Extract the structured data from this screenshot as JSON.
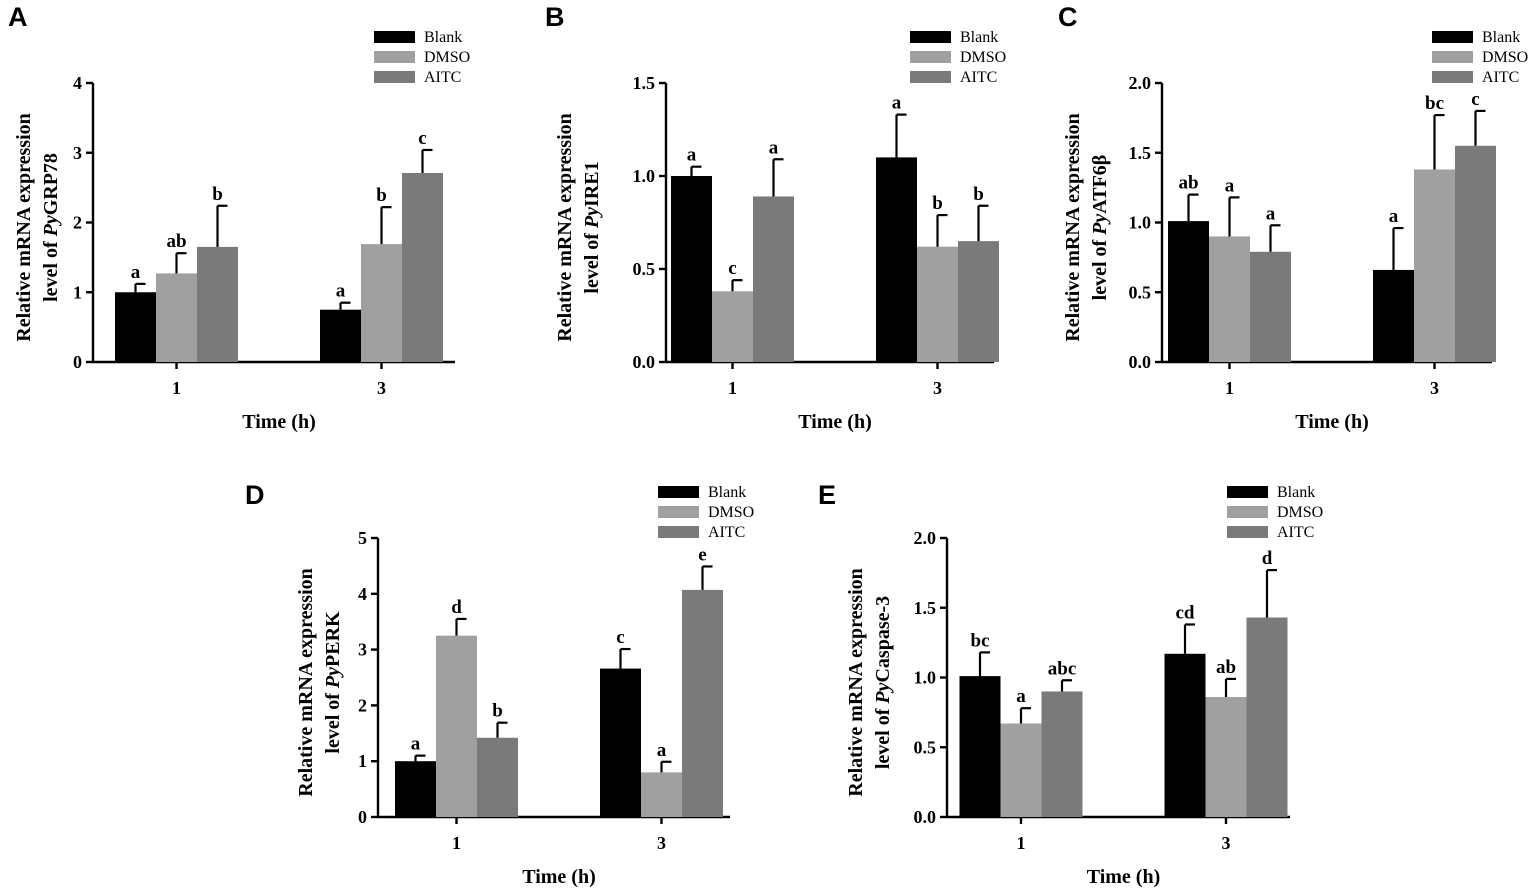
{
  "colors": {
    "Blank": "#000000",
    "DMSO": "#a0a0a0",
    "AITC": "#7a7a7a"
  },
  "chart_data": [
    {
      "type": "bar",
      "panel": "A",
      "categories": [
        "1",
        "3"
      ],
      "xlabel": "Time (h)",
      "ylabel_line1": "Relative mRNA expression",
      "ylabel_line2_prefix": "level of ",
      "ylabel_italic": "Py",
      "ylabel_suffix": "GRP78",
      "ylim": [
        0,
        4
      ],
      "yticks": [
        "0",
        "1",
        "2",
        "3",
        "4"
      ],
      "legend": [
        "Blank",
        "DMSO",
        "AITC"
      ],
      "series": [
        {
          "name": "Blank",
          "values": [
            1.0,
            0.75
          ],
          "errors": [
            0.12,
            0.1
          ],
          "labels": [
            "a",
            "a"
          ]
        },
        {
          "name": "DMSO",
          "values": [
            1.27,
            1.69
          ],
          "errors": [
            0.29,
            0.53
          ],
          "labels": [
            "ab",
            "b"
          ]
        },
        {
          "name": "AITC",
          "values": [
            1.65,
            2.71
          ],
          "errors": [
            0.59,
            0.33
          ],
          "labels": [
            "b",
            "c"
          ]
        }
      ]
    },
    {
      "type": "bar",
      "panel": "B",
      "categories": [
        "1",
        "3"
      ],
      "xlabel": "Time (h)",
      "ylabel_line1": "Relative mRNA expression",
      "ylabel_line2_prefix": "level of ",
      "ylabel_italic": "Py",
      "ylabel_suffix": "IRE1",
      "ylim": [
        0,
        1.5
      ],
      "yticks": [
        "0.0",
        "0.5",
        "1.0",
        "1.5"
      ],
      "legend": [
        "Blank",
        "DMSO",
        "AITC"
      ],
      "series": [
        {
          "name": "Blank",
          "values": [
            1.0,
            1.1
          ],
          "errors": [
            0.05,
            0.23
          ],
          "labels": [
            "a",
            "a"
          ]
        },
        {
          "name": "DMSO",
          "values": [
            0.38,
            0.62
          ],
          "errors": [
            0.06,
            0.17
          ],
          "labels": [
            "c",
            "b"
          ]
        },
        {
          "name": "AITC",
          "values": [
            0.89,
            0.65
          ],
          "errors": [
            0.2,
            0.19
          ],
          "labels": [
            "a",
            "b"
          ]
        }
      ]
    },
    {
      "type": "bar",
      "panel": "C",
      "categories": [
        "1",
        "3"
      ],
      "xlabel": "Time (h)",
      "ylabel_line1": "Relative mRNA expression",
      "ylabel_line2_prefix": "level of ",
      "ylabel_italic": "Py",
      "ylabel_suffix": "ATF6β",
      "ylim": [
        0,
        2.0
      ],
      "yticks": [
        "0.0",
        "0.5",
        "1.0",
        "1.5",
        "2.0"
      ],
      "legend": [
        "Blank",
        "DMSO",
        "AITC"
      ],
      "series": [
        {
          "name": "Blank",
          "values": [
            1.01,
            0.66
          ],
          "errors": [
            0.19,
            0.3
          ],
          "labels": [
            "ab",
            "a"
          ]
        },
        {
          "name": "DMSO",
          "values": [
            0.9,
            1.38
          ],
          "errors": [
            0.28,
            0.39
          ],
          "labels": [
            "a",
            "bc"
          ]
        },
        {
          "name": "AITC",
          "values": [
            0.79,
            1.55
          ],
          "errors": [
            0.19,
            0.25
          ],
          "labels": [
            "a",
            "c"
          ]
        }
      ]
    },
    {
      "type": "bar",
      "panel": "D",
      "categories": [
        "1",
        "3"
      ],
      "xlabel": "Time (h)",
      "ylabel_line1": "Relative mRNA expression",
      "ylabel_line2_prefix": "level of ",
      "ylabel_italic": "Py",
      "ylabel_suffix": "PERK",
      "ylim": [
        0,
        5
      ],
      "yticks": [
        "0",
        "1",
        "2",
        "3",
        "4",
        "5"
      ],
      "legend": [
        "Blank",
        "DMSO",
        "AITC"
      ],
      "series": [
        {
          "name": "Blank",
          "values": [
            1.0,
            2.66
          ],
          "errors": [
            0.1,
            0.35
          ],
          "labels": [
            "a",
            "c"
          ]
        },
        {
          "name": "DMSO",
          "values": [
            3.25,
            0.8
          ],
          "errors": [
            0.3,
            0.19
          ],
          "labels": [
            "d",
            "a"
          ]
        },
        {
          "name": "AITC",
          "values": [
            1.42,
            4.07
          ],
          "errors": [
            0.27,
            0.42
          ],
          "labels": [
            "b",
            "e"
          ]
        }
      ]
    },
    {
      "type": "bar",
      "panel": "E",
      "categories": [
        "1",
        "3"
      ],
      "xlabel": "Time (h)",
      "ylabel_line1": "Relative mRNA expression",
      "ylabel_line2_prefix": "level of ",
      "ylabel_italic": "Py",
      "ylabel_suffix": "Caspase-3",
      "ylim": [
        0,
        2.0
      ],
      "yticks": [
        "0.0",
        "0.5",
        "1.0",
        "1.5",
        "2.0"
      ],
      "legend": [
        "Blank",
        "DMSO",
        "AITC"
      ],
      "series": [
        {
          "name": "Blank",
          "values": [
            1.01,
            1.17
          ],
          "errors": [
            0.17,
            0.21
          ],
          "labels": [
            "bc",
            "cd"
          ]
        },
        {
          "name": "DMSO",
          "values": [
            0.67,
            0.86
          ],
          "errors": [
            0.11,
            0.13
          ],
          "labels": [
            "a",
            "ab"
          ]
        },
        {
          "name": "AITC",
          "values": [
            0.9,
            1.43
          ],
          "errors": [
            0.08,
            0.34
          ],
          "labels": [
            "abc",
            "d"
          ]
        }
      ]
    }
  ]
}
